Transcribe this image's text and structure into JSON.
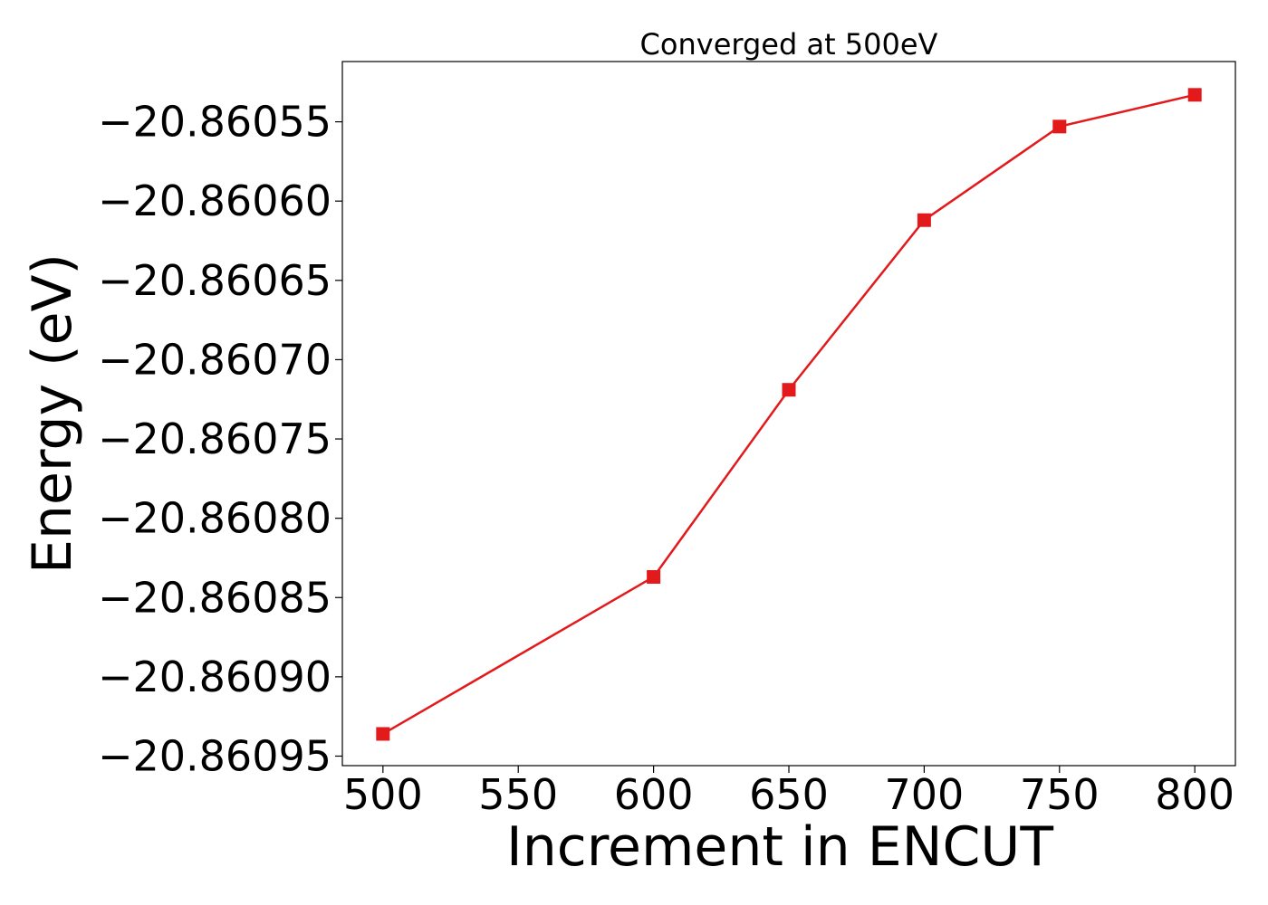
{
  "chart_data": {
    "type": "line",
    "title": "Converged at 500eV",
    "xlabel": "Increment in ENCUT",
    "ylabel": "Energy (eV)",
    "x": [
      500,
      600,
      650,
      700,
      750,
      800
    ],
    "series": [
      {
        "values": [
          -20.860936,
          -20.860837,
          -20.860719,
          -20.860612,
          -20.860553,
          -20.860533
        ],
        "color": "#e31a1c",
        "marker": "square"
      }
    ],
    "xticks": [
      500,
      550,
      600,
      650,
      700,
      750,
      800
    ],
    "xtick_labels": [
      "500",
      "550",
      "600",
      "650",
      "700",
      "750",
      "800"
    ],
    "yticks": [
      -20.86055,
      -20.8606,
      -20.86065,
      -20.8607,
      -20.86075,
      -20.8608,
      -20.86085,
      -20.8609,
      -20.86095
    ],
    "ytick_labels": [
      "−20.86055",
      "−20.86060",
      "−20.86065",
      "−20.86070",
      "−20.86075",
      "−20.86080",
      "−20.86085",
      "−20.86090",
      "−20.86095"
    ],
    "xlim": [
      485,
      815
    ],
    "ylim": [
      -20.860956,
      -20.860512
    ],
    "grid": false,
    "legend": "none"
  }
}
